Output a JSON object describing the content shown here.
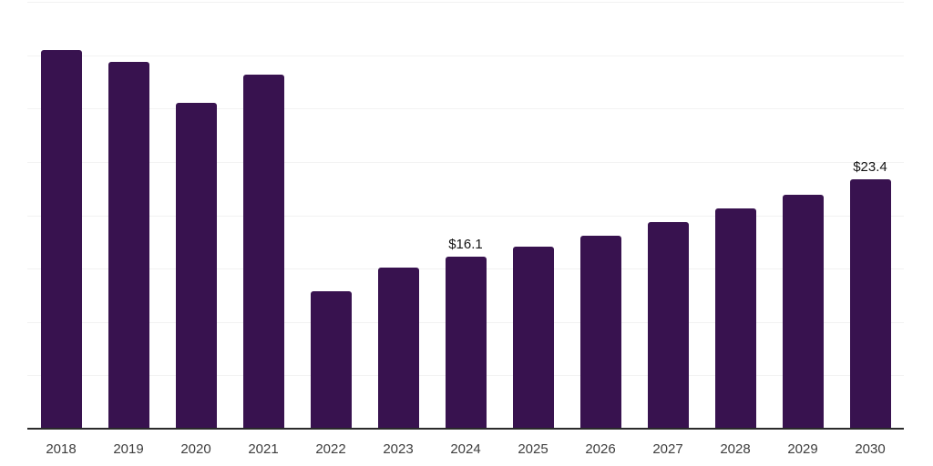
{
  "chart_data": {
    "type": "bar",
    "title": "",
    "xlabel": "",
    "ylabel": "",
    "categories": [
      "2018",
      "2019",
      "2020",
      "2021",
      "2022",
      "2023",
      "2024",
      "2025",
      "2026",
      "2027",
      "2028",
      "2029",
      "2030"
    ],
    "values": [
      35.5,
      34.4,
      30.5,
      33.2,
      12.9,
      15.1,
      16.1,
      17.1,
      18.1,
      19.4,
      20.6,
      21.9,
      23.4
    ],
    "data_labels": [
      "",
      "",
      "",
      "",
      "",
      "",
      "$16.1",
      "",
      "",
      "",
      "",
      "",
      "$23.4"
    ],
    "ylim": [
      0,
      40
    ],
    "gridline_step": 5,
    "grid": true,
    "y_axis_labels_visible": false,
    "legend_position": "none",
    "colors": {
      "bar": "#38124F",
      "gridline": "#f2f2f2",
      "axis_line": "#2b2b2b",
      "tick_label": "#3d3d3d",
      "data_label": "#141414"
    }
  }
}
